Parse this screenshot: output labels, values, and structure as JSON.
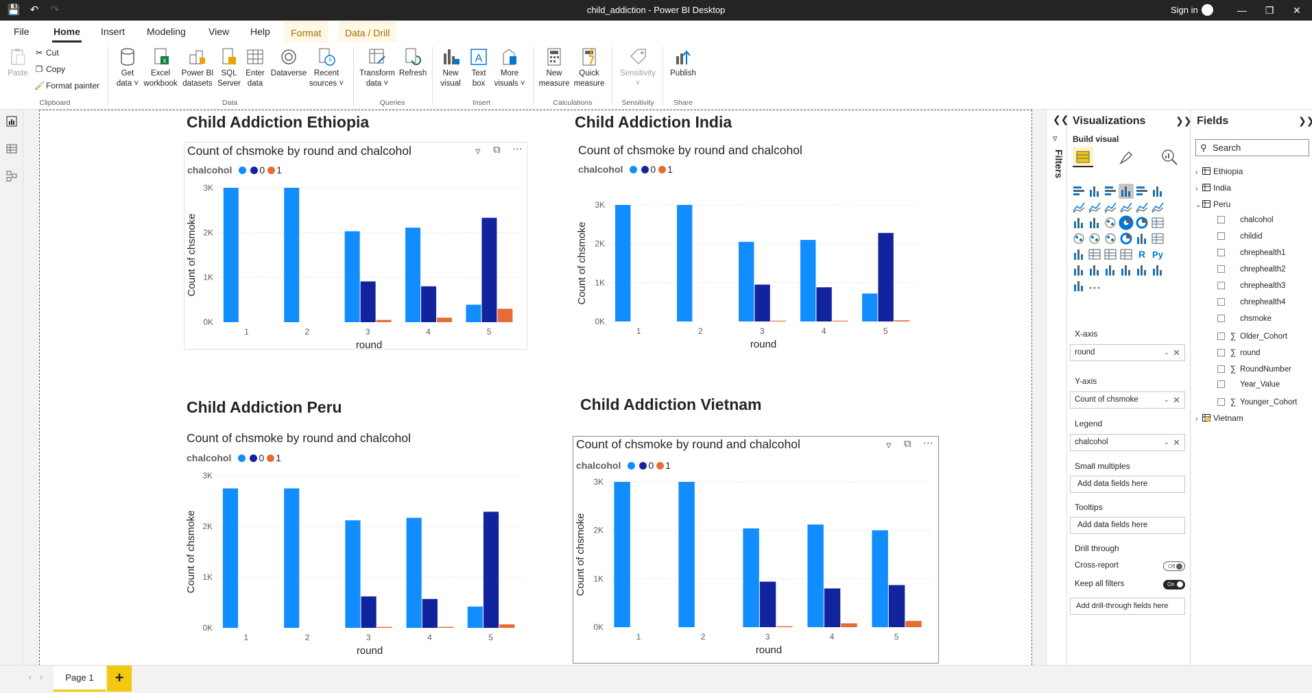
{
  "window": {
    "title": "child_addiction - Power BI Desktop",
    "signin": "Sign in"
  },
  "ribbon_tabs": [
    "File",
    "Home",
    "Insert",
    "Modeling",
    "View",
    "Help",
    "Format",
    "Data / Drill"
  ],
  "ribbon": {
    "clipboard": {
      "paste": "Paste",
      "cut": "Cut",
      "copy": "Copy",
      "format_painter": "Format painter",
      "group": "Clipboard"
    },
    "data": {
      "get_data_1": "Get",
      "get_data_2": "data",
      "excel_1": "Excel",
      "excel_2": "workbook",
      "pbi_1": "Power BI",
      "pbi_2": "datasets",
      "sql_1": "SQL",
      "sql_2": "Server",
      "enter_1": "Enter",
      "enter_2": "data",
      "dataverse": "Dataverse",
      "recent_1": "Recent",
      "recent_2": "sources",
      "group": "Data"
    },
    "queries": {
      "transform_1": "Transform",
      "transform_2": "data",
      "refresh": "Refresh",
      "group": "Queries"
    },
    "insert": {
      "newvisual_1": "New",
      "newvisual_2": "visual",
      "textbox_1": "Text",
      "textbox_2": "box",
      "morevisuals_1": "More",
      "morevisuals_2": "visuals",
      "group": "Insert"
    },
    "calculations": {
      "newmeasure_1": "New",
      "newmeasure_2": "measure",
      "quick_1": "Quick",
      "quick_2": "measure",
      "group": "Calculations"
    },
    "sensitivity": {
      "label": "Sensitivity",
      "group": "Sensitivity"
    },
    "share": {
      "publish": "Publish",
      "group": "Share"
    }
  },
  "report": {
    "charts": [
      {
        "heading": "Child Addiction Ethiopia",
        "title": "Count of chsmoke by round and chalcohol",
        "legend_title": "chalcohol",
        "legend_items": [
          "0",
          "1"
        ],
        "ylabel": "Count of chsmoke",
        "xlabel": "round"
      },
      {
        "heading": "Child Addiction India",
        "title": "Count of chsmoke by round and chalcohol",
        "legend_title": "chalcohol",
        "legend_items": [
          "0",
          "1"
        ],
        "ylabel": "Count of chsmoke",
        "xlabel": "round"
      },
      {
        "heading": "Child Addiction Peru",
        "title": "Count of chsmoke by round and chalcohol",
        "legend_title": "chalcohol",
        "legend_items": [
          "0",
          "1"
        ],
        "ylabel": "Count of chsmoke",
        "xlabel": "round"
      },
      {
        "heading": "Child Addiction Vietnam",
        "title": "Count of chsmoke by round and chalcohol",
        "legend_title": "chalcohol",
        "legend_items": [
          "0",
          "1"
        ],
        "ylabel": "Count of chsmoke",
        "xlabel": "round"
      }
    ],
    "colors": {
      "blank": "#118DFF",
      "zero": "#12239E",
      "one": "#E66C37"
    },
    "yticks": [
      "0K",
      "1K",
      "2K",
      "3K"
    ]
  },
  "chart_data": [
    {
      "type": "bar",
      "title": "Count of chsmoke by round and chalcohol",
      "xlabel": "round",
      "ylabel": "Count of chsmoke",
      "categories": [
        "1",
        "2",
        "3",
        "4",
        "5"
      ],
      "ylim": [
        0,
        3000
      ],
      "series": [
        {
          "name": "",
          "values": [
            3000,
            3000,
            2030,
            2110,
            390
          ]
        },
        {
          "name": "0",
          "values": [
            0,
            0,
            910,
            800,
            2330
          ]
        },
        {
          "name": "1",
          "values": [
            0,
            0,
            50,
            100,
            300
          ]
        }
      ]
    },
    {
      "type": "bar",
      "title": "Count of chsmoke by round and chalcohol",
      "xlabel": "round",
      "ylabel": "Count of chsmoke",
      "categories": [
        "1",
        "2",
        "3",
        "4",
        "5"
      ],
      "ylim": [
        0,
        3000
      ],
      "series": [
        {
          "name": "",
          "values": [
            3000,
            3000,
            2050,
            2100,
            720
          ]
        },
        {
          "name": "0",
          "values": [
            0,
            0,
            950,
            880,
            2280
          ]
        },
        {
          "name": "1",
          "values": [
            0,
            0,
            20,
            20,
            30
          ]
        }
      ]
    },
    {
      "type": "bar",
      "title": "Count of chsmoke by round and chalcohol",
      "xlabel": "round",
      "ylabel": "Count of chsmoke",
      "categories": [
        "1",
        "2",
        "3",
        "4",
        "5"
      ],
      "ylim": [
        0,
        3000
      ],
      "series": [
        {
          "name": "",
          "values": [
            2750,
            2750,
            2120,
            2170,
            420
          ]
        },
        {
          "name": "0",
          "values": [
            0,
            0,
            620,
            570,
            2290
          ]
        },
        {
          "name": "1",
          "values": [
            0,
            0,
            20,
            20,
            70
          ]
        }
      ]
    },
    {
      "type": "bar",
      "title": "Count of chsmoke by round and chalcohol",
      "xlabel": "round",
      "ylabel": "Count of chsmoke",
      "categories": [
        "1",
        "2",
        "3",
        "4",
        "5"
      ],
      "ylim": [
        0,
        3000
      ],
      "series": [
        {
          "name": "",
          "values": [
            3000,
            3000,
            2040,
            2120,
            2000
          ]
        },
        {
          "name": "0",
          "values": [
            0,
            0,
            940,
            800,
            870
          ]
        },
        {
          "name": "1",
          "values": [
            0,
            0,
            20,
            80,
            130
          ]
        }
      ]
    }
  ],
  "filters": {
    "label": "Filters"
  },
  "visualizations": {
    "title": "Visualizations",
    "build_visual": "Build visual",
    "wells": {
      "xaxis_label": "X-axis",
      "xaxis_value": "round",
      "yaxis_label": "Y-axis",
      "yaxis_value": "Count of chsmoke",
      "legend_label": "Legend",
      "legend_value": "chalcohol",
      "small_multiples_label": "Small multiples",
      "small_multiples_placeholder": "Add data fields here",
      "tooltips_label": "Tooltips",
      "tooltips_placeholder": "Add data fields here",
      "drill_label": "Drill through",
      "cross_report": "Cross-report",
      "cross_report_state": "Off",
      "keep_filters": "Keep all filters",
      "keep_filters_state": "On",
      "drill_placeholder": "Add drill-through fields here"
    }
  },
  "fields": {
    "title": "Fields",
    "search_placeholder": "Search",
    "tables": [
      "Ethiopia",
      "India",
      "Peru",
      "Vietnam"
    ],
    "peru_fields": [
      {
        "name": "chalcohol",
        "sigma": false
      },
      {
        "name": "childid",
        "sigma": false
      },
      {
        "name": "chrephealth1",
        "sigma": false
      },
      {
        "name": "chrephealth2",
        "sigma": false
      },
      {
        "name": "chrephealth3",
        "sigma": false
      },
      {
        "name": "chrephealth4",
        "sigma": false
      },
      {
        "name": "chsmoke",
        "sigma": false
      },
      {
        "name": "Older_Cohort",
        "sigma": true
      },
      {
        "name": "round",
        "sigma": true
      },
      {
        "name": "RoundNumber",
        "sigma": true
      },
      {
        "name": "Year_Value",
        "sigma": false
      },
      {
        "name": "Younger_Cohort",
        "sigma": true
      }
    ]
  },
  "pages": {
    "page1": "Page 1",
    "add": "+"
  }
}
